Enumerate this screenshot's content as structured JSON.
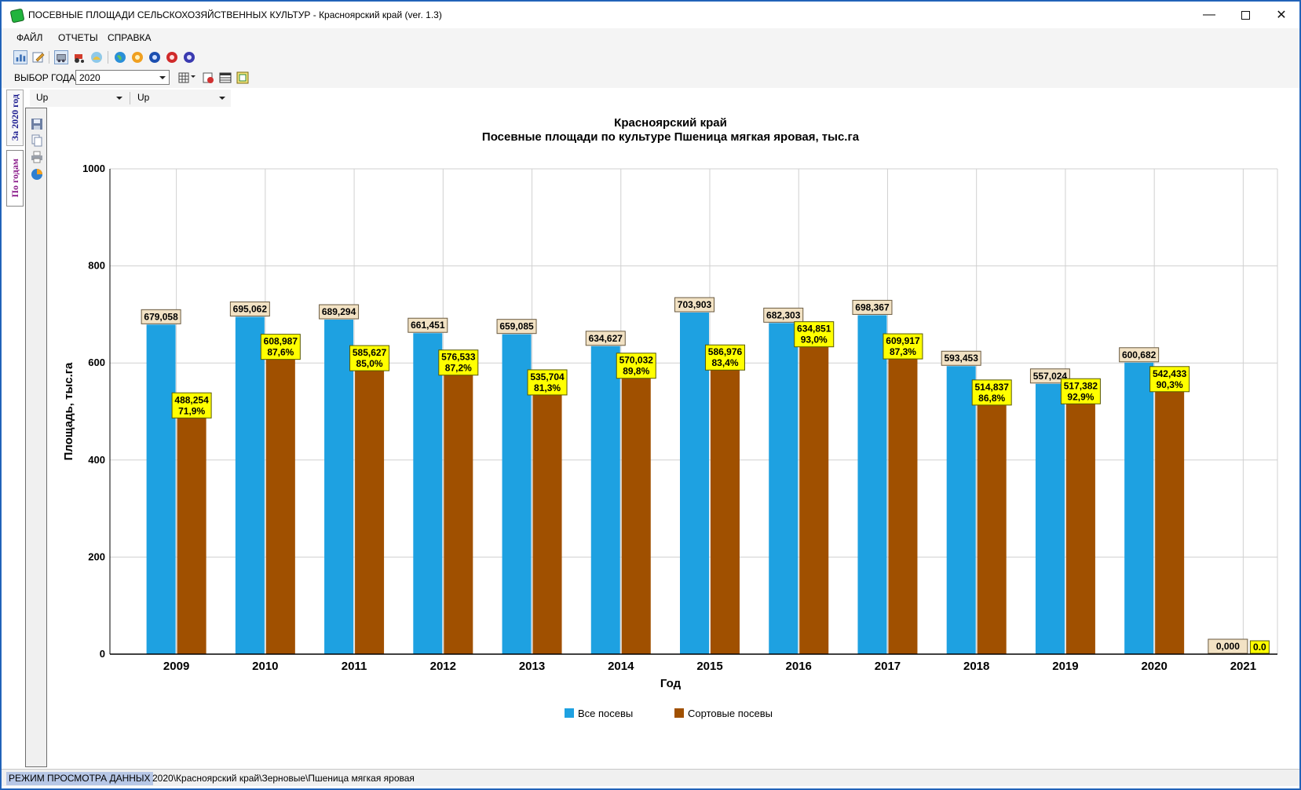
{
  "window": {
    "title": "ПОСЕВНЫЕ ПЛОЩАДИ СЕЛЬСКОХОЗЯЙСТВЕННЫХ КУЛЬТУР - Красноярский край (ver. 1.3)"
  },
  "menu": {
    "items": [
      "ФАЙЛ",
      "ОТЧЕТЫ",
      "СПРАВКА"
    ]
  },
  "toolbar2": {
    "year_label": "ВЫБОР ГОДА",
    "year_value": "2020"
  },
  "side_tabs": [
    "За 2020 год",
    "По годам"
  ],
  "filters": [
    "Up",
    "Up"
  ],
  "chart_data": {
    "type": "bar",
    "title": "Красноярский край",
    "subtitle": "Посевные площади по культуре Пшеница мягкая яровая,  тыс.га",
    "xlabel": "Год",
    "ylabel": "Площадь, тыс.га",
    "ylim": [
      0,
      1000
    ],
    "yticks": [
      0,
      200,
      400,
      600,
      800,
      1000
    ],
    "grid": true,
    "legend_position": "bottom",
    "categories": [
      "2009",
      "2010",
      "2011",
      "2012",
      "2013",
      "2014",
      "2015",
      "2016",
      "2017",
      "2018",
      "2019",
      "2020",
      "2021"
    ],
    "series": [
      {
        "name": "Все посевы",
        "color": "#1ea1e1",
        "values": [
          679.058,
          695.062,
          689.294,
          661.451,
          659.085,
          634.627,
          703.903,
          682.303,
          698.367,
          593.453,
          557.024,
          600.682,
          0.0
        ],
        "labels": [
          "679,058",
          "695,062",
          "689,294",
          "661,451",
          "659,085",
          "634,627",
          "703,903",
          "682,303",
          "698,367",
          "593,453",
          "557,024",
          "600,682",
          "0,000"
        ]
      },
      {
        "name": "Сортовые посевы",
        "color": "#a05000",
        "values": [
          488.254,
          608.987,
          585.627,
          576.533,
          535.704,
          570.032,
          586.976,
          634.851,
          609.917,
          514.837,
          517.382,
          542.433,
          0.0
        ],
        "labels": [
          "488,254",
          "608,987",
          "585,627",
          "576,533",
          "535,704",
          "570,032",
          "586,976",
          "634,851",
          "609,917",
          "514,837",
          "517,382",
          "542,433",
          "0.0"
        ],
        "percents": [
          "71,9%",
          "87,6%",
          "85,0%",
          "87,2%",
          "81,3%",
          "89,8%",
          "83,4%",
          "93,0%",
          "87,3%",
          "86,8%",
          "92,9%",
          "90,3%",
          ""
        ]
      }
    ]
  },
  "status": {
    "mode": "РЕЖИМ ПРОСМОТРА ДАННЫХ",
    "path": "2020\\Красноярский край\\Зерновые\\Пшеница мягкая яровая"
  }
}
